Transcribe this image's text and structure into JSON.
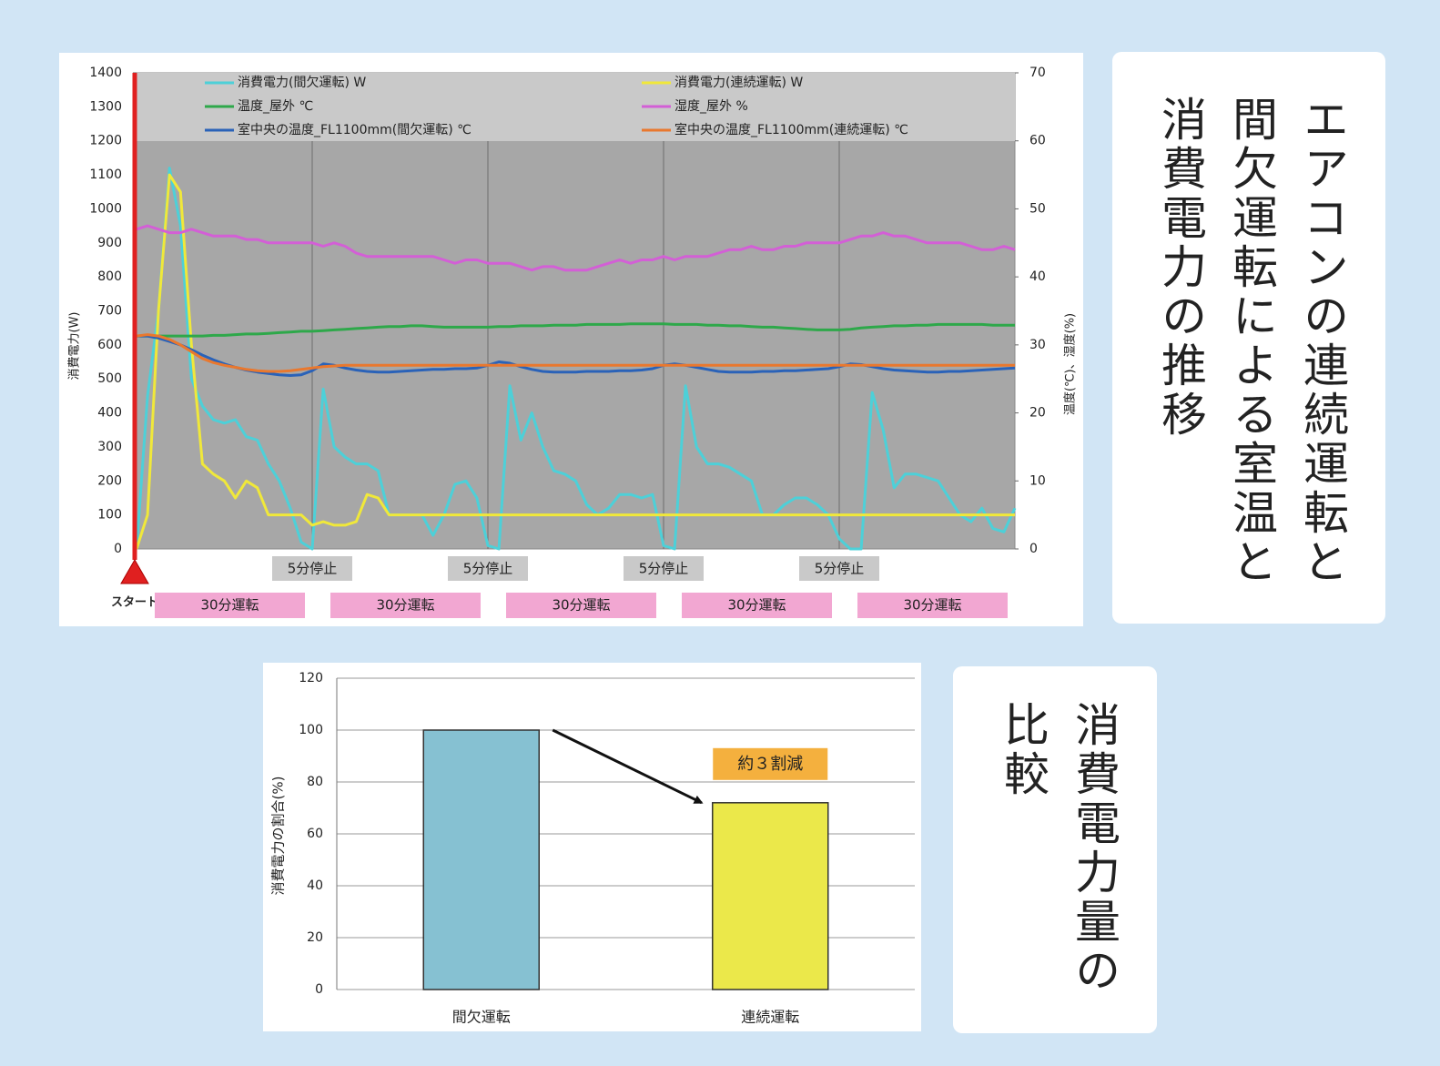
{
  "chart_data": [
    {
      "type": "line",
      "title": "エアコンの連続運転と間欠運転による室温と消費電力の推移",
      "y_label": "消費電力(W)",
      "y2_label": "温度(℃)、湿度(%)",
      "ylim": [
        0,
        1400
      ],
      "yticks": [
        0,
        100,
        200,
        300,
        400,
        500,
        600,
        700,
        800,
        900,
        1000,
        1100,
        1200,
        1300,
        1400
      ],
      "y2lim": [
        0,
        70
      ],
      "y2ticks": [
        0,
        10,
        20,
        30,
        40,
        50,
        60,
        70
      ],
      "legend": "top",
      "grid": false,
      "start_label": "スタート",
      "stop_labels": [
        "5分停止",
        "5分停止",
        "5分停止",
        "5分停止"
      ],
      "run_labels": [
        "30分運転",
        "30分運転",
        "30分運転",
        "30分運転",
        "30分運転"
      ],
      "series": [
        {
          "name": "消費電力(間欠運転) W",
          "color": "#4dd0d8",
          "values": [
            0,
            450,
            700,
            1120,
            950,
            500,
            420,
            380,
            370,
            380,
            330,
            320,
            250,
            200,
            120,
            20,
            0,
            470,
            300,
            270,
            250,
            250,
            230,
            100,
            100,
            100,
            100,
            40,
            100,
            190,
            200,
            150,
            10,
            0,
            480,
            320,
            400,
            300,
            230,
            220,
            200,
            130,
            100,
            120,
            160,
            160,
            150,
            160,
            10,
            0,
            480,
            300,
            250,
            250,
            240,
            220,
            200,
            100,
            100,
            130,
            150,
            150,
            130,
            100,
            30,
            0,
            0,
            460,
            350,
            180,
            220,
            220,
            210,
            200,
            150,
            100,
            80,
            120,
            60,
            50,
            120
          ]
        },
        {
          "name": "消費電力(連続運転) W",
          "color": "#f0e83a",
          "values": [
            0,
            100,
            700,
            1100,
            1050,
            600,
            250,
            220,
            200,
            150,
            200,
            180,
            100,
            100,
            100,
            100,
            70,
            80,
            70,
            70,
            80,
            160,
            150,
            100,
            100,
            100,
            100,
            100,
            100,
            100,
            100,
            100,
            100,
            100,
            100,
            100,
            100,
            100,
            100,
            100,
            100,
            100,
            100,
            100,
            100,
            100,
            100,
            100,
            100,
            100,
            100,
            100,
            100,
            100,
            100,
            100,
            100,
            100,
            100,
            100,
            100,
            100,
            100,
            100,
            100,
            100,
            100,
            100,
            100,
            100,
            100,
            100,
            100,
            100,
            100,
            100,
            100,
            100,
            100,
            100,
            100
          ]
        },
        {
          "name": "温度_屋外 ℃",
          "color": "#2ea84a",
          "axis": "y2",
          "values": [
            31.3,
            31.3,
            31.3,
            31.3,
            31.3,
            31.3,
            31.3,
            31.4,
            31.4,
            31.5,
            31.6,
            31.6,
            31.7,
            31.8,
            31.9,
            32.0,
            32.0,
            32.1,
            32.2,
            32.3,
            32.4,
            32.5,
            32.6,
            32.7,
            32.7,
            32.8,
            32.8,
            32.7,
            32.6,
            32.6,
            32.6,
            32.6,
            32.6,
            32.7,
            32.7,
            32.8,
            32.8,
            32.8,
            32.9,
            32.9,
            32.9,
            33.0,
            33.0,
            33.0,
            33.0,
            33.1,
            33.1,
            33.1,
            33.1,
            33.0,
            33.0,
            33.0,
            32.9,
            32.9,
            32.8,
            32.8,
            32.7,
            32.6,
            32.6,
            32.5,
            32.4,
            32.3,
            32.2,
            32.2,
            32.2,
            32.3,
            32.5,
            32.6,
            32.7,
            32.8,
            32.8,
            32.9,
            32.9,
            33.0,
            33.0,
            33.0,
            33.0,
            33.0,
            32.9,
            32.9,
            32.9
          ]
        },
        {
          "name": "湿度_屋外 %",
          "color": "#d35fd6",
          "axis": "y2",
          "values": [
            47.0,
            47.5,
            47.0,
            46.5,
            46.5,
            47.0,
            46.5,
            46.0,
            46.0,
            46.0,
            45.5,
            45.5,
            45.0,
            45.0,
            45.0,
            45.0,
            45.0,
            44.5,
            45.0,
            44.5,
            43.5,
            43.0,
            43.0,
            43.0,
            43.0,
            43.0,
            43.0,
            43.0,
            42.5,
            42.0,
            42.5,
            42.5,
            42.0,
            42.0,
            42.0,
            41.5,
            41.0,
            41.5,
            41.5,
            41.0,
            41.0,
            41.0,
            41.5,
            42.0,
            42.5,
            42.0,
            42.5,
            42.5,
            43.0,
            42.5,
            43.0,
            43.0,
            43.0,
            43.5,
            44.0,
            44.0,
            44.5,
            44.0,
            44.0,
            44.5,
            44.5,
            45.0,
            45.0,
            45.0,
            45.0,
            45.5,
            46.0,
            46.0,
            46.5,
            46.0,
            46.0,
            45.5,
            45.0,
            45.0,
            45.0,
            45.0,
            44.5,
            44.0,
            44.0,
            44.5,
            44.0
          ]
        },
        {
          "name": "室中央の温度_FL1100mm(間欠運転) ℃",
          "color": "#2a62b8",
          "axis": "y2",
          "values": [
            31.3,
            31.3,
            31.0,
            30.5,
            30.0,
            29.3,
            28.5,
            27.8,
            27.2,
            26.7,
            26.3,
            26.0,
            25.8,
            25.6,
            25.5,
            25.6,
            26.2,
            27.2,
            27.0,
            26.6,
            26.3,
            26.1,
            26.0,
            26.0,
            26.1,
            26.2,
            26.3,
            26.4,
            26.4,
            26.5,
            26.5,
            26.6,
            27.0,
            27.5,
            27.3,
            26.8,
            26.4,
            26.1,
            26.0,
            26.0,
            26.0,
            26.1,
            26.1,
            26.1,
            26.2,
            26.2,
            26.3,
            26.5,
            27.0,
            27.2,
            27.0,
            26.7,
            26.4,
            26.1,
            26.0,
            26.0,
            26.0,
            26.1,
            26.1,
            26.2,
            26.2,
            26.3,
            26.4,
            26.5,
            26.8,
            27.2,
            27.1,
            26.8,
            26.5,
            26.3,
            26.2,
            26.1,
            26.0,
            26.0,
            26.1,
            26.1,
            26.2,
            26.3,
            26.4,
            26.5,
            26.6
          ]
        },
        {
          "name": "室中央の温度_FL1100mm(連続運転) ℃",
          "color": "#e9782e",
          "axis": "y2",
          "values": [
            31.3,
            31.5,
            31.3,
            30.8,
            30.0,
            29.0,
            28.0,
            27.4,
            27.0,
            26.7,
            26.4,
            26.2,
            26.1,
            26.1,
            26.2,
            26.4,
            26.6,
            26.8,
            26.9,
            27.0,
            27.0,
            27.0,
            27.0,
            27.0,
            27.0,
            27.0,
            27.0,
            27.0,
            27.0,
            27.0,
            27.0,
            27.0,
            27.0,
            27.0,
            27.0,
            27.0,
            27.0,
            27.0,
            27.0,
            27.0,
            27.0,
            27.0,
            27.0,
            27.0,
            27.0,
            27.0,
            27.0,
            27.0,
            27.0,
            27.0,
            27.0,
            27.0,
            27.0,
            27.0,
            27.0,
            27.0,
            27.0,
            27.0,
            27.0,
            27.0,
            27.0,
            27.0,
            27.0,
            27.0,
            27.0,
            27.0,
            27.0,
            27.0,
            27.0,
            27.0,
            27.0,
            27.0,
            27.0,
            27.0,
            27.0,
            27.0,
            27.0,
            27.0,
            27.0,
            27.0,
            27.0
          ]
        }
      ]
    },
    {
      "type": "bar",
      "title": "消費電力量の比較",
      "y_label": "消費電力の割合(%)",
      "categories": [
        "間欠運転",
        "連続運転"
      ],
      "values": [
        100,
        72
      ],
      "colors": [
        "#86c1d2",
        "#ebe84a"
      ],
      "ylim": [
        0,
        120
      ],
      "yticks": [
        0,
        20,
        40,
        60,
        80,
        100,
        120
      ],
      "grid": true,
      "annotation": "約３割減"
    }
  ]
}
